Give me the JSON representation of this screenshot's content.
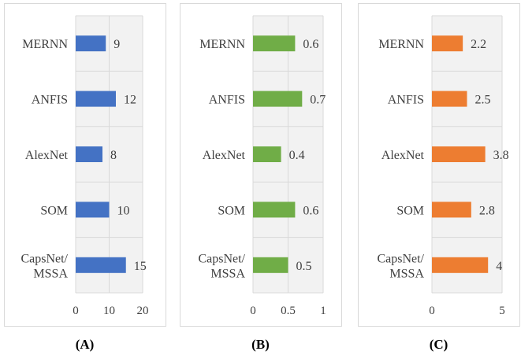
{
  "colors": {
    "A": "#4472C4",
    "B": "#70AD47",
    "C": "#ED7D31",
    "plot_bg": "#F2F2F2",
    "grid": "#D9D9D9",
    "frame": "#D9D9D9"
  },
  "chart_data": [
    {
      "type": "bar",
      "orientation": "horizontal",
      "caption": "(A)",
      "categories": [
        "MERNN",
        "ANFIS",
        "AlexNet",
        "SOM",
        "CapsNet/\nMSSA"
      ],
      "values": [
        9,
        12,
        8,
        10,
        15
      ],
      "value_labels": [
        "9",
        "12",
        "8",
        "10",
        "15"
      ],
      "xlim": [
        0,
        20
      ],
      "xticks": [
        0,
        10,
        20
      ],
      "xtick_labels": [
        "0",
        "10",
        "20"
      ],
      "color_key": "A"
    },
    {
      "type": "bar",
      "orientation": "horizontal",
      "caption": "(B)",
      "categories": [
        "MERNN",
        "ANFIS",
        "AlexNet",
        "SOM",
        "CapsNet/\nMSSA"
      ],
      "values": [
        0.6,
        0.7,
        0.4,
        0.6,
        0.5
      ],
      "value_labels": [
        "0.6",
        "0.7",
        "0.4",
        "0.6",
        "0.5"
      ],
      "xlim": [
        0,
        1
      ],
      "xticks": [
        0,
        0.5,
        1
      ],
      "xtick_labels": [
        "0",
        "0.5",
        "1"
      ],
      "color_key": "B"
    },
    {
      "type": "bar",
      "orientation": "horizontal",
      "caption": "(C)",
      "categories": [
        "MERNN",
        "ANFIS",
        "AlexNet",
        "SOM",
        "CapsNet/\nMSSA"
      ],
      "values": [
        2.2,
        2.5,
        3.8,
        2.8,
        4
      ],
      "value_labels": [
        "2.2",
        "2.5",
        "3.8",
        "2.8",
        "4"
      ],
      "xlim": [
        0,
        5
      ],
      "xticks": [
        0,
        5
      ],
      "xtick_labels": [
        "0",
        "5"
      ],
      "color_key": "C"
    }
  ]
}
